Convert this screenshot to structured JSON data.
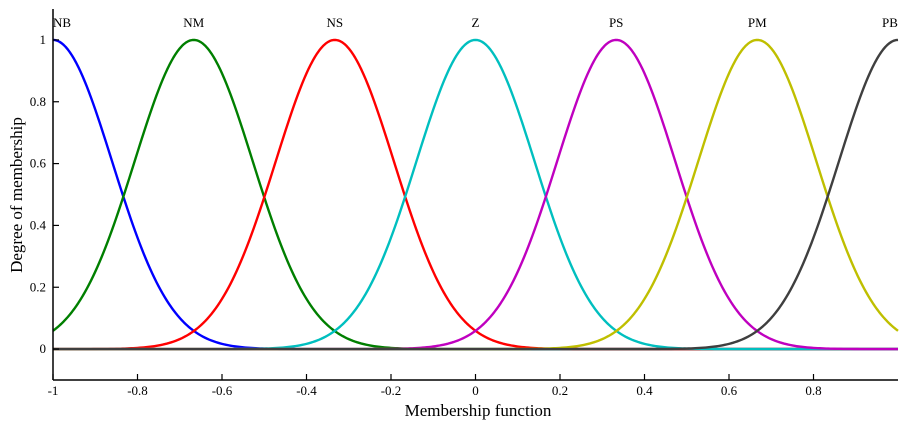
{
  "chart_data": {
    "type": "line",
    "title": "",
    "xlabel": "Membership function",
    "ylabel": "Degree of membership",
    "xlim": [
      -1,
      1
    ],
    "ylim": [
      -0.1,
      1.1
    ],
    "x_ticks": [
      -1,
      -0.8,
      -0.6,
      -0.4,
      -0.2,
      0,
      0.2,
      0.4,
      0.6,
      0.8
    ],
    "x_tick_labels": [
      "-1",
      "-0.8",
      "-0.6",
      "-0.4",
      "-0.2",
      "0",
      "0.2",
      "0.4",
      "0.6",
      "0.8"
    ],
    "y_ticks": [
      0,
      0.2,
      0.4,
      0.6,
      0.8,
      1
    ],
    "y_tick_labels": [
      "0",
      "0.2",
      "0.4",
      "0.6",
      "0.8",
      "1"
    ],
    "grid": false,
    "legend": "none",
    "function": "gaussian",
    "sigma": 0.14,
    "series": [
      {
        "name": "NB",
        "center": -1,
        "color": "#0000ff"
      },
      {
        "name": "NM",
        "center": -0.667,
        "color": "#007f00"
      },
      {
        "name": "NS",
        "center": -0.333,
        "color": "#ff0000"
      },
      {
        "name": "Z",
        "center": 0,
        "color": "#00bfbf"
      },
      {
        "name": "PS",
        "center": 0.333,
        "color": "#bf00bf"
      },
      {
        "name": "PM",
        "center": 0.667,
        "color": "#bfbf00"
      },
      {
        "name": "PB",
        "center": 1,
        "color": "#3f3f3f"
      }
    ]
  }
}
